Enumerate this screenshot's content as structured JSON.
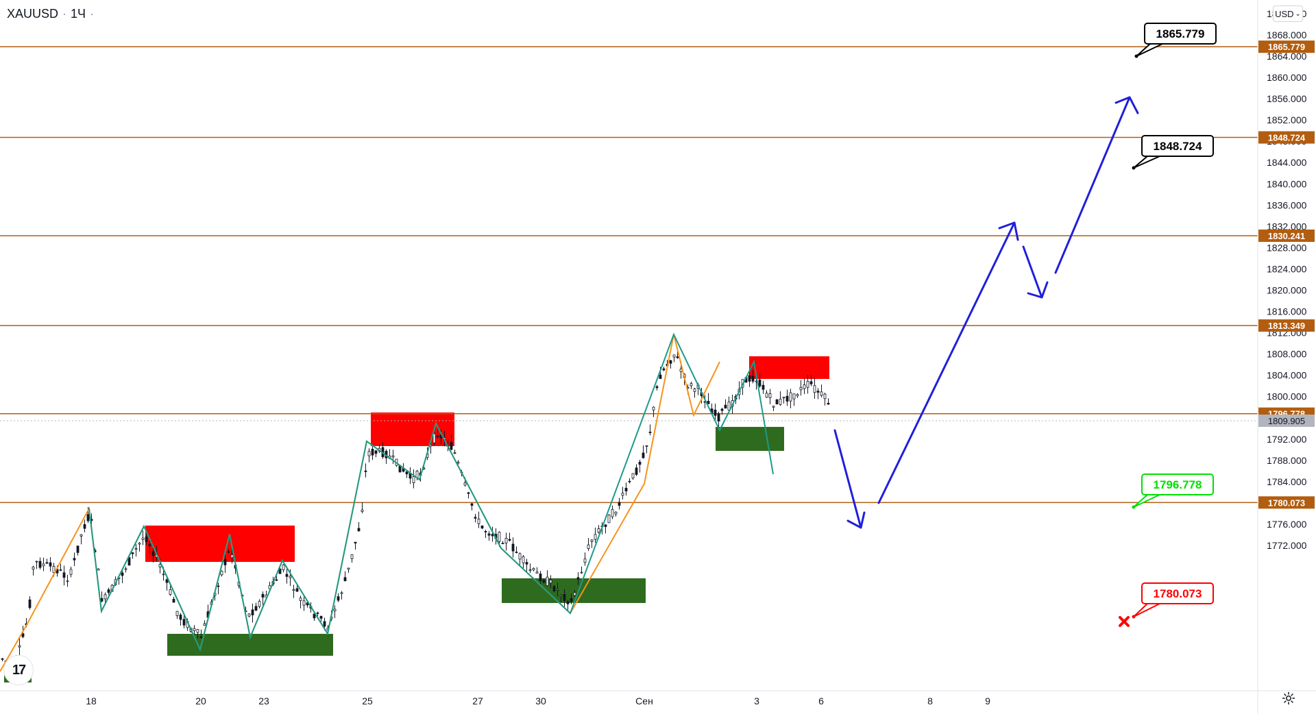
{
  "symbol": {
    "ticker": "XAUUSD",
    "separator": "·",
    "interval": "1Ч",
    "extra_dot": "·"
  },
  "toolbar": {
    "currency_label": "USD",
    "currency_chevron": "⌄"
  },
  "price_axis": {
    "ticks": [
      "1872.000",
      "1868.000",
      "1864.000",
      "1860.000",
      "1856.000",
      "1852.000",
      "1848.000",
      "1844.000",
      "1840.000",
      "1836.000",
      "1832.000",
      "1828.000",
      "1824.000",
      "1820.000",
      "1816.000",
      "1812.000",
      "1808.000",
      "1804.000",
      "1800.000",
      "1796.000",
      "1792.000",
      "1788.000",
      "1784.000",
      "1780.000",
      "1776.000",
      "1772.000"
    ],
    "top_partial_label": "1   0"
  },
  "time_axis": {
    "labels": [
      "18",
      "20",
      "23",
      "25",
      "27",
      "30",
      "Сен",
      "3",
      "6",
      "8",
      "9"
    ]
  },
  "levels": [
    {
      "price": 1865.779,
      "label": "1865.779",
      "color": "#b25d0f"
    },
    {
      "price": 1848.724,
      "label": "1848.724",
      "color": "#b25d0f"
    },
    {
      "price": 1830.241,
      "label": "1830.241",
      "color": "#b25d0f"
    },
    {
      "price": 1813.349,
      "label": "1813.349",
      "color": "#b25d0f"
    },
    {
      "price": 1796.778,
      "label": "1796.778",
      "color": "#b25d0f"
    },
    {
      "price": 1780.073,
      "label": "1780.073",
      "color": "#b25d0f"
    }
  ],
  "current_price": {
    "label": "1809.905",
    "color": "#b2b5be"
  },
  "callouts": [
    {
      "label": "1865.779",
      "color": "#000000",
      "border": "#000000"
    },
    {
      "label": "1848.724",
      "color": "#000000",
      "border": "#000000"
    },
    {
      "label": "1796.778",
      "color": "#00e000",
      "border": "#00e000"
    },
    {
      "label": "1780.073",
      "color": "#ff0000",
      "border": "#ff0000"
    }
  ],
  "zones": [
    {
      "kind": "supply",
      "color": "#ff0000"
    },
    {
      "kind": "supply",
      "color": "#ff0000"
    },
    {
      "kind": "supply",
      "color": "#ff0000"
    },
    {
      "kind": "demand",
      "color": "#2e6b1e"
    },
    {
      "kind": "demand",
      "color": "#2e6b1e"
    },
    {
      "kind": "demand",
      "color": "#2e6b1e"
    }
  ],
  "colors": {
    "level_line": "#b25d0f",
    "zigzag_up": "#f7931a",
    "zigzag_down": "#1c9a8a",
    "forecast_arrow": "#1f1fdc",
    "candle": "#131722",
    "stop_cross": "#ff0000"
  },
  "icons": {
    "stop": "close-icon",
    "settings": "gear-icon",
    "logo": "tradingview-logo"
  },
  "logo_text": "17"
}
